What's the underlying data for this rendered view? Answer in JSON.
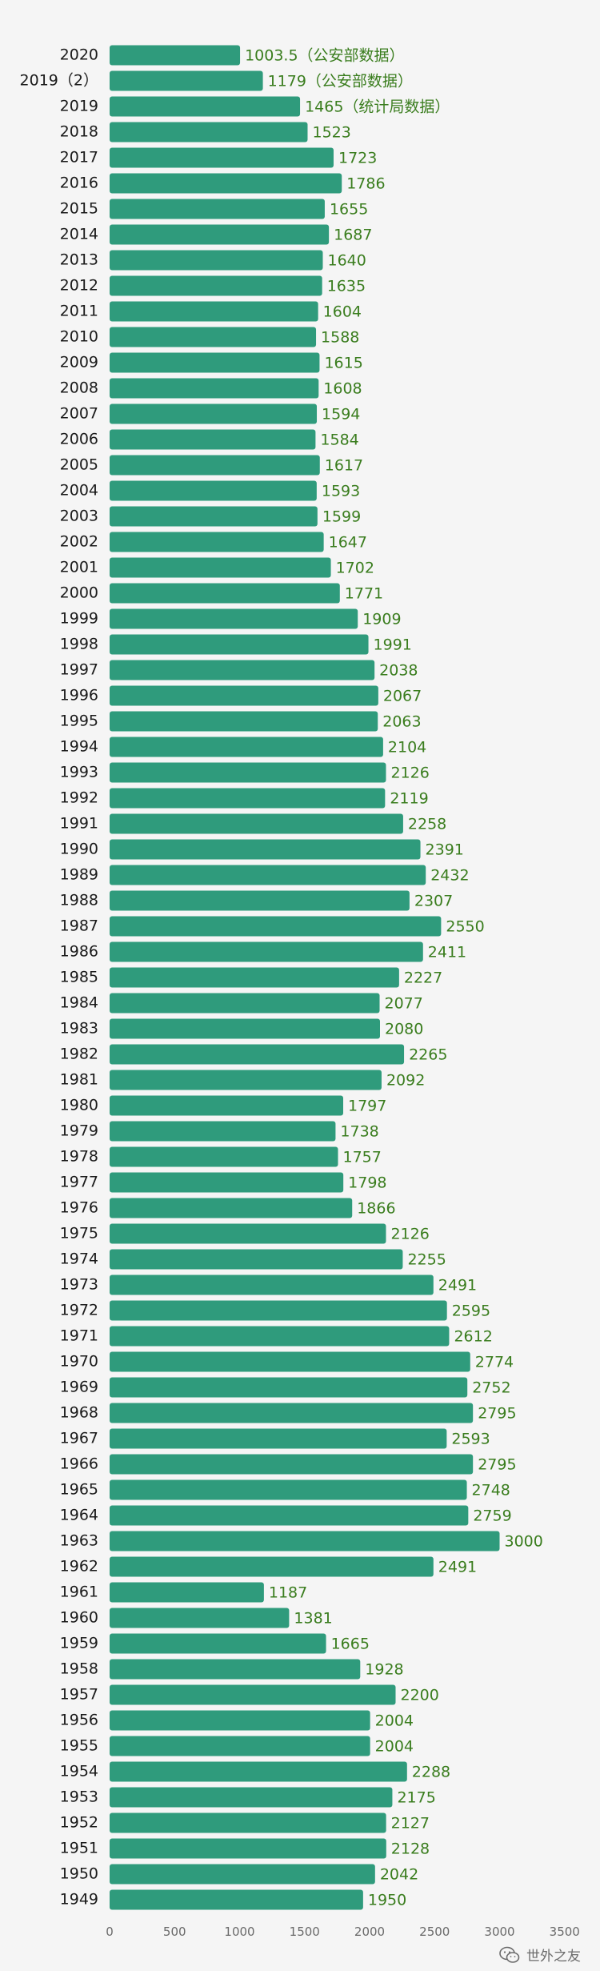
{
  "chart_data": {
    "type": "bar",
    "orientation": "horizontal",
    "categories": [
      "2020",
      "2019（2）",
      "2019",
      "2018",
      "2017",
      "2016",
      "2015",
      "2014",
      "2013",
      "2012",
      "2011",
      "2010",
      "2009",
      "2008",
      "2007",
      "2006",
      "2005",
      "2004",
      "2003",
      "2002",
      "2001",
      "2000",
      "1999",
      "1998",
      "1997",
      "1996",
      "1995",
      "1994",
      "1993",
      "1992",
      "1991",
      "1990",
      "1989",
      "1988",
      "1987",
      "1986",
      "1985",
      "1984",
      "1983",
      "1982",
      "1981",
      "1980",
      "1979",
      "1978",
      "1977",
      "1976",
      "1975",
      "1974",
      "1973",
      "1972",
      "1971",
      "1970",
      "1969",
      "1968",
      "1967",
      "1966",
      "1965",
      "1964",
      "1963",
      "1962",
      "1961",
      "1960",
      "1959",
      "1958",
      "1957",
      "1956",
      "1955",
      "1954",
      "1953",
      "1952",
      "1951",
      "1950",
      "1949"
    ],
    "values": [
      1003.5,
      1179,
      1465,
      1523,
      1723,
      1786,
      1655,
      1687,
      1640,
      1635,
      1604,
      1588,
      1615,
      1608,
      1594,
      1584,
      1617,
      1593,
      1599,
      1647,
      1702,
      1771,
      1909,
      1991,
      2038,
      2067,
      2063,
      2104,
      2126,
      2119,
      2258,
      2391,
      2432,
      2307,
      2550,
      2411,
      2227,
      2077,
      2080,
      2265,
      2092,
      1797,
      1738,
      1757,
      1798,
      1866,
      2126,
      2255,
      2491,
      2595,
      2612,
      2774,
      2752,
      2795,
      2593,
      2795,
      2748,
      2759,
      3000,
      2491,
      1187,
      1381,
      1665,
      1928,
      2200,
      2004,
      2004,
      2288,
      2175,
      2127,
      2128,
      2042,
      1950
    ],
    "data_labels": [
      "1003.5（公安部数据）",
      "1179（公安部数据）",
      "1465（统计局数据）",
      "1523",
      "1723",
      "1786",
      "1655",
      "1687",
      "1640",
      "1635",
      "1604",
      "1588",
      "1615",
      "1608",
      "1594",
      "1584",
      "1617",
      "1593",
      "1599",
      "1647",
      "1702",
      "1771",
      "1909",
      "1991",
      "2038",
      "2067",
      "2063",
      "2104",
      "2126",
      "2119",
      "2258",
      "2391",
      "2432",
      "2307",
      "2550",
      "2411",
      "2227",
      "2077",
      "2080",
      "2265",
      "2092",
      "1797",
      "1738",
      "1757",
      "1798",
      "1866",
      "2126",
      "2255",
      "2491",
      "2595",
      "2612",
      "2774",
      "2752",
      "2795",
      "2593",
      "2795",
      "2748",
      "2759",
      "3000",
      "2491",
      "1187",
      "1381",
      "1665",
      "1928",
      "2200",
      "2004",
      "2004",
      "2288",
      "2175",
      "2127",
      "2128",
      "2042",
      "1950"
    ],
    "xlim": [
      0,
      3500
    ],
    "xticks": [
      "0",
      "500",
      "1000",
      "1500",
      "2000",
      "2500",
      "3000",
      "3500"
    ],
    "grid": false,
    "legend": "none",
    "bar_color": "#2f9b7c",
    "label_color": "#3a7d1e"
  },
  "watermark": {
    "text": "世外之友",
    "icon": "wechat-icon"
  }
}
